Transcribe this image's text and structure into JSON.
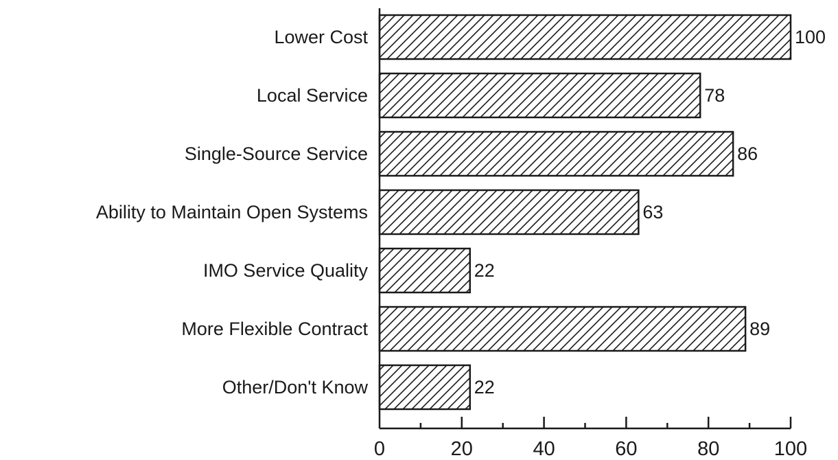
{
  "chart_data": {
    "type": "bar",
    "orientation": "horizontal",
    "categories": [
      "Lower Cost",
      "Local Service",
      "Single-Source Service",
      "Ability to Maintain Open Systems",
      "IMO Service Quality",
      "More Flexible Contract",
      "Other/Don't Know"
    ],
    "values": [
      100,
      78,
      86,
      63,
      22,
      89,
      22
    ],
    "value_labels": [
      "100",
      "78",
      "86",
      "63",
      "22",
      "89",
      "22"
    ],
    "xlim": [
      0,
      100
    ],
    "xticks": [
      0,
      20,
      40,
      60,
      80,
      100
    ],
    "xtick_labels": [
      "0",
      "20",
      "40",
      "60",
      "80",
      "100"
    ],
    "minor_tick_step": 10,
    "bar_fill": "diagonal-hatch",
    "bar_color": "#1a1a1a",
    "background": "#ffffff",
    "grid": false,
    "legend": "none"
  }
}
